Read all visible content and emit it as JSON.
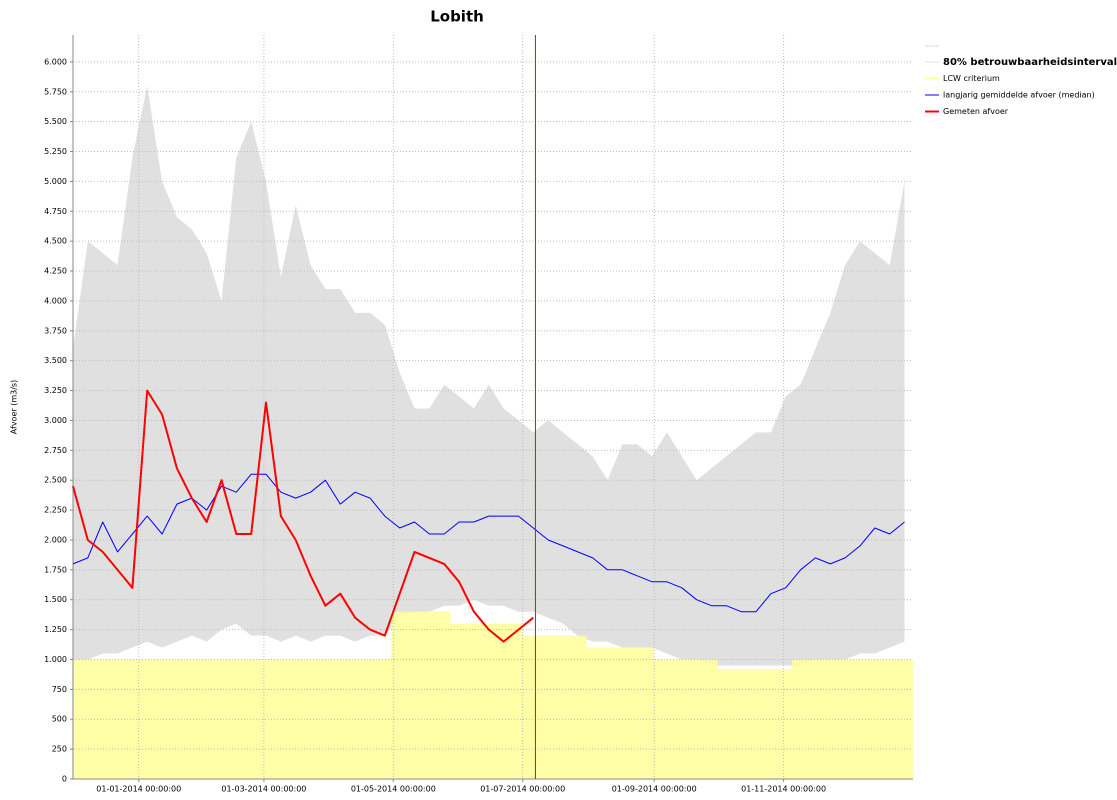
{
  "chart_data": {
    "type": "line",
    "title": "Lobith",
    "y_label": "Afvoer (m3/s)",
    "xlim": [
      "2013-12-01",
      "2015-01-01"
    ],
    "xticks": [
      {
        "value": "2014-01-01",
        "label": "01-01-2014 00:00:00"
      },
      {
        "value": "2014-03-01",
        "label": "01-03-2014 00:00:00"
      },
      {
        "value": "2014-05-01",
        "label": "01-05-2014 00:00:00"
      },
      {
        "value": "2014-07-01",
        "label": "01-07-2014 00:00:00"
      },
      {
        "value": "2014-09-01",
        "label": "01-09-2014 00:00:00"
      },
      {
        "value": "2014-11-01",
        "label": "01-11-2014 00:00:00"
      }
    ],
    "ylim": [
      0,
      6225
    ],
    "yticks": [
      0,
      250,
      500,
      750,
      {
        "value": 1000,
        "label": "1.000"
      },
      {
        "value": 1250,
        "label": "1.250"
      },
      {
        "value": 1500,
        "label": "1.500"
      },
      {
        "value": 1750,
        "label": "1.750"
      },
      {
        "value": 2000,
        "label": "2.000"
      },
      {
        "value": 2250,
        "label": "2.250"
      },
      {
        "value": 2500,
        "label": "2.500"
      },
      {
        "value": 2750,
        "label": "2.750"
      },
      {
        "value": 3000,
        "label": "3.000"
      },
      {
        "value": 3250,
        "label": "3.250"
      },
      {
        "value": 3500,
        "label": "3.500"
      },
      {
        "value": 3750,
        "label": "3.750"
      },
      {
        "value": 4000,
        "label": "4.000"
      },
      {
        "value": 4250,
        "label": "4.250"
      },
      {
        "value": 4500,
        "label": "4.500"
      },
      {
        "value": 4750,
        "label": "4.750"
      },
      {
        "value": 5000,
        "label": "5.000"
      },
      {
        "value": 5250,
        "label": "5.250"
      },
      {
        "value": 5500,
        "label": "5.500"
      },
      {
        "value": 5750,
        "label": "5.750"
      },
      {
        "value": 6000,
        "label": "6.000"
      }
    ],
    "grid": true,
    "legend": "right",
    "cursor_x": "2014-07-07",
    "cursor_color": "#ff0000",
    "x": [
      "2013-12-01",
      "2013-12-08",
      "2013-12-15",
      "2013-12-22",
      "2013-12-29",
      "2014-01-05",
      "2014-01-12",
      "2014-01-19",
      "2014-01-26",
      "2014-02-02",
      "2014-02-09",
      "2014-02-16",
      "2014-02-23",
      "2014-03-02",
      "2014-03-09",
      "2014-03-16",
      "2014-03-23",
      "2014-03-30",
      "2014-04-06",
      "2014-04-13",
      "2014-04-20",
      "2014-04-27",
      "2014-05-04",
      "2014-05-11",
      "2014-05-18",
      "2014-05-25",
      "2014-06-01",
      "2014-06-08",
      "2014-06-15",
      "2014-06-22",
      "2014-06-29",
      "2014-07-06",
      "2014-07-13",
      "2014-07-20",
      "2014-07-27",
      "2014-08-03",
      "2014-08-10",
      "2014-08-17",
      "2014-08-24",
      "2014-08-31",
      "2014-09-07",
      "2014-09-14",
      "2014-09-21",
      "2014-09-28",
      "2014-10-05",
      "2014-10-12",
      "2014-10-19",
      "2014-10-26",
      "2014-11-02",
      "2014-11-09",
      "2014-11-16",
      "2014-11-23",
      "2014-11-30",
      "2014-12-07",
      "2014-12-14",
      "2014-12-21",
      "2014-12-28"
    ],
    "series": [
      {
        "name": "80% betrouwbaarheidsinterval",
        "kind": "band",
        "color": "#e0e0e0",
        "legend_text_color": "#0000ff",
        "values": [
          3600,
          4500,
          4400,
          4300,
          5200,
          5800,
          5000,
          4700,
          4600,
          4400,
          4000,
          5200,
          5500,
          5000,
          4200,
          4800,
          4300,
          4100,
          4100,
          3900,
          3900,
          3800,
          3400,
          3100,
          3100,
          3300,
          3200,
          3100,
          3300,
          3100,
          3000,
          2900,
          3000,
          2900,
          2800,
          2700,
          2500,
          2800,
          2800,
          2700,
          2900,
          2700,
          2500,
          2600,
          2700,
          2800,
          2900,
          2900,
          3200,
          3300,
          3600,
          3900,
          4300,
          4500,
          4400,
          4300,
          5000
        ],
        "lower": [
          1000,
          1000,
          1050,
          1050,
          1100,
          1150,
          1100,
          1150,
          1200,
          1150,
          1250,
          1300,
          1200,
          1200,
          1150,
          1200,
          1150,
          1200,
          1200,
          1150,
          1200,
          1200,
          1350,
          1400,
          1400,
          1450,
          1450,
          1500,
          1450,
          1450,
          1400,
          1400,
          1350,
          1300,
          1200,
          1150,
          1150,
          1100,
          1100,
          1100,
          1050,
          1000,
          1000,
          950,
          950,
          950,
          950,
          950,
          950,
          950,
          1000,
          1000,
          1000,
          1050,
          1050,
          1100,
          1150
        ]
      },
      {
        "name": "LCW criterium",
        "kind": "step",
        "color": "#ffff99",
        "x": [
          "2013-12-01",
          "2014-04-30",
          "2014-05-28",
          "2014-07-01",
          "2014-07-31",
          "2014-09-01",
          "2014-10-01",
          "2014-11-05"
        ],
        "values": [
          1000,
          1400,
          1300,
          1200,
          1100,
          1000,
          920,
          1000
        ]
      },
      {
        "name": "langjarig gemiddelde afvoer (median)",
        "kind": "line",
        "color": "#0000ff",
        "values": [
          1800,
          1850,
          2150,
          1900,
          2050,
          2200,
          2050,
          2300,
          2350,
          2250,
          2450,
          2400,
          2550,
          2550,
          2400,
          2350,
          2400,
          2500,
          2300,
          2400,
          2350,
          2200,
          2100,
          2150,
          2050,
          2050,
          2150,
          2150,
          2200,
          2200,
          2200,
          2100,
          2000,
          1950,
          1900,
          1850,
          1750,
          1750,
          1700,
          1650,
          1650,
          1600,
          1500,
          1450,
          1450,
          1400,
          1400,
          1550,
          1600,
          1750,
          1850,
          1800,
          1850,
          1950,
          2100,
          2050,
          2150
        ]
      },
      {
        "name": "Gemeten afvoer",
        "kind": "line",
        "color": "#ff0000",
        "values": [
          2450,
          2000,
          1900,
          1750,
          1600,
          3250,
          3050,
          2600,
          2350,
          2150,
          2500,
          2050,
          2050,
          3150,
          2200,
          2000,
          1700,
          1450,
          1550,
          1350,
          1250,
          1200,
          1550,
          1900,
          1850,
          1800,
          1650,
          1400,
          1250,
          1150,
          1250,
          1350,
          null,
          null,
          null,
          null,
          null,
          null,
          null,
          null,
          null,
          null,
          null,
          null,
          null,
          null,
          null,
          null,
          null,
          null,
          null,
          null,
          null,
          null,
          null,
          null,
          null
        ]
      }
    ]
  }
}
